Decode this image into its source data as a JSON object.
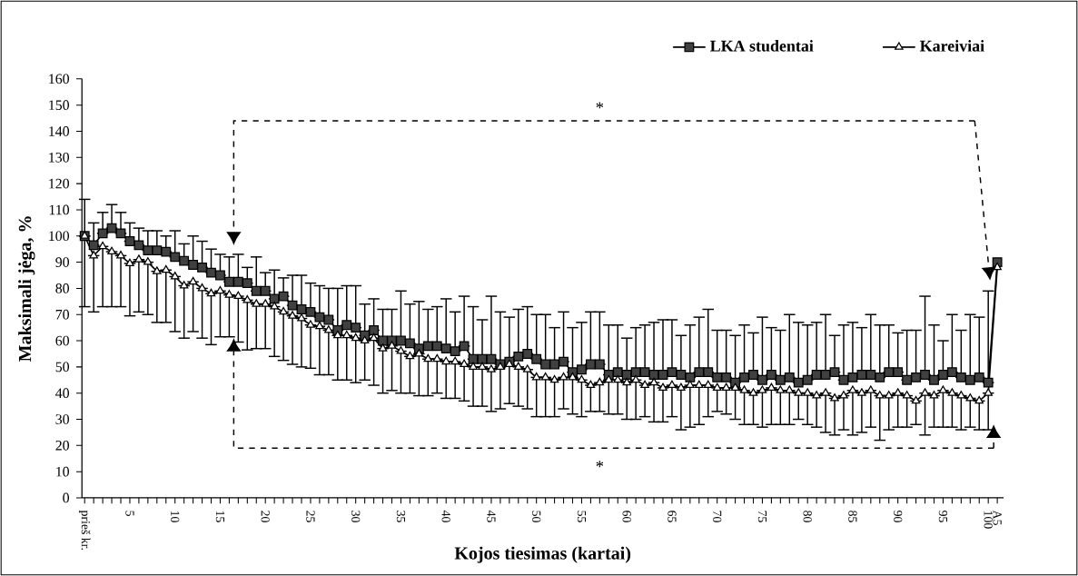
{
  "chart_data": {
    "type": "line",
    "xlabel": "Kojos tiesimas (kartai)",
    "ylabel": "Maksimali jėga, %",
    "categories": [
      "prieš kr.",
      null,
      null,
      null,
      null,
      "5",
      null,
      null,
      null,
      null,
      "10",
      null,
      null,
      null,
      null,
      "15",
      null,
      null,
      null,
      null,
      "20",
      null,
      null,
      null,
      null,
      "25",
      null,
      null,
      null,
      null,
      "30",
      null,
      null,
      null,
      null,
      "35",
      null,
      null,
      null,
      null,
      "40",
      null,
      null,
      null,
      null,
      "45",
      null,
      null,
      null,
      null,
      "50",
      null,
      null,
      null,
      null,
      "55",
      null,
      null,
      null,
      null,
      "60",
      null,
      null,
      null,
      null,
      "65",
      null,
      null,
      null,
      null,
      "70",
      null,
      null,
      null,
      null,
      "75",
      null,
      null,
      null,
      null,
      "80",
      null,
      null,
      null,
      null,
      "85",
      null,
      null,
      null,
      null,
      "90",
      null,
      null,
      null,
      null,
      "95",
      null,
      null,
      null,
      null,
      "100",
      "A5"
    ],
    "ylim": [
      0,
      160
    ],
    "yticks": [
      0,
      10,
      20,
      30,
      40,
      50,
      60,
      70,
      80,
      90,
      100,
      110,
      120,
      130,
      140,
      150,
      160
    ],
    "legend": "top right",
    "line_style": "solid",
    "annotations": [
      "*",
      "*"
    ],
    "series": [
      {
        "name": "LKA studentai",
        "color": "#404040",
        "marker": "square",
        "values": [
          100,
          96.5,
          101,
          103,
          101,
          98,
          96.5,
          94.5,
          94.5,
          94,
          92,
          90.5,
          89,
          88,
          86,
          85,
          82.5,
          82.5,
          82,
          79,
          79,
          76,
          77,
          73.5,
          72,
          71,
          69,
          68,
          64,
          66,
          65,
          62,
          64,
          60,
          60,
          60,
          59,
          57,
          58,
          58,
          57,
          56,
          58,
          53,
          53,
          53,
          51,
          52,
          54,
          55,
          53,
          51,
          51,
          52,
          48,
          49,
          51,
          51,
          47,
          48,
          47,
          48,
          48,
          47,
          47,
          48,
          47,
          46,
          48,
          48,
          46,
          46,
          44,
          46,
          47,
          45,
          47,
          45,
          46,
          44,
          45,
          47,
          47,
          48,
          45,
          46,
          47,
          47,
          46,
          48,
          48,
          45,
          46,
          47,
          45,
          47,
          48,
          46,
          45,
          46,
          44,
          90
        ],
        "errors": [
          [
            100,
            114
          ],
          [
            96.5,
            105
          ],
          [
            101,
            109
          ],
          [
            103,
            112
          ],
          [
            101,
            109
          ],
          [
            98,
            105
          ],
          [
            96.5,
            103
          ],
          [
            94.5,
            102
          ],
          [
            94.5,
            102
          ],
          [
            94,
            100
          ],
          [
            92,
            102
          ],
          [
            90.5,
            97
          ],
          [
            89,
            100
          ],
          [
            88,
            98
          ],
          [
            86,
            95
          ],
          [
            85,
            93
          ],
          [
            82.5,
            92
          ],
          [
            82.5,
            93
          ],
          [
            82,
            88
          ],
          [
            79,
            92
          ],
          [
            79,
            86
          ],
          [
            76,
            87
          ],
          [
            77,
            84
          ],
          [
            73.5,
            85
          ],
          [
            72,
            85
          ],
          [
            71,
            82
          ],
          [
            69,
            81
          ],
          [
            68,
            80
          ],
          [
            64,
            80
          ],
          [
            66,
            81
          ],
          [
            65,
            81
          ],
          [
            62,
            74
          ],
          [
            64,
            76
          ],
          [
            60,
            72
          ],
          [
            60,
            72
          ],
          [
            60,
            79
          ],
          [
            59,
            74
          ],
          [
            57,
            75
          ],
          [
            58,
            72
          ],
          [
            58,
            73
          ],
          [
            57,
            76
          ],
          [
            56,
            71
          ],
          [
            58,
            77
          ],
          [
            53,
            73
          ],
          [
            53,
            68
          ],
          [
            53,
            77
          ],
          [
            51,
            71
          ],
          [
            52,
            69
          ],
          [
            54,
            72
          ],
          [
            55,
            73
          ],
          [
            53,
            70
          ],
          [
            51,
            70
          ],
          [
            51,
            65
          ],
          [
            52,
            71
          ],
          [
            48,
            65
          ],
          [
            49,
            67
          ],
          [
            51,
            71
          ],
          [
            51,
            71
          ],
          [
            47,
            66
          ],
          [
            48,
            66
          ],
          [
            47,
            61
          ],
          [
            48,
            65
          ],
          [
            48,
            66
          ],
          [
            47,
            67
          ],
          [
            47,
            68
          ],
          [
            48,
            68
          ],
          [
            47,
            62
          ],
          [
            46,
            66
          ],
          [
            48,
            69
          ],
          [
            48,
            72
          ],
          [
            46,
            64
          ],
          [
            46,
            64
          ],
          [
            44,
            62
          ],
          [
            46,
            66
          ],
          [
            47,
            63
          ],
          [
            45,
            69
          ],
          [
            47,
            65
          ],
          [
            45,
            64
          ],
          [
            46,
            70
          ],
          [
            44,
            67
          ],
          [
            45,
            66
          ],
          [
            47,
            67
          ],
          [
            47,
            70
          ],
          [
            48,
            62
          ],
          [
            45,
            66
          ],
          [
            46,
            67
          ],
          [
            47,
            65
          ],
          [
            47,
            70
          ],
          [
            46,
            66
          ],
          [
            48,
            66
          ],
          [
            48,
            63
          ],
          [
            45,
            64
          ],
          [
            46,
            64
          ],
          [
            47,
            77
          ],
          [
            45,
            66
          ],
          [
            47,
            60
          ],
          [
            48,
            70
          ],
          [
            46,
            64
          ],
          [
            45,
            70
          ],
          [
            46,
            69
          ],
          [
            44,
            79
          ],
          null
        ]
      },
      {
        "name": "Kareiviai",
        "color": "#ffffff",
        "marker": "triangle",
        "values": [
          100,
          92.5,
          96,
          94,
          92.5,
          89.5,
          91,
          90,
          86.5,
          87,
          84.5,
          81,
          82.5,
          80,
          78,
          79,
          77.5,
          77,
          75.5,
          74,
          74,
          73,
          71,
          69.5,
          68.5,
          66,
          65.5,
          64,
          62,
          62,
          61,
          60,
          61,
          57,
          58,
          56,
          54,
          55,
          53,
          53,
          52,
          52,
          51,
          50,
          50,
          49,
          50,
          51,
          50,
          49,
          46,
          46,
          45,
          46,
          46,
          45,
          43,
          44,
          45,
          45,
          44,
          45,
          43,
          44,
          42,
          43,
          42,
          43,
          43,
          43,
          42,
          42,
          42,
          41,
          40,
          41,
          42,
          41,
          41,
          40,
          40,
          39,
          40,
          38,
          39,
          41,
          40,
          41,
          39,
          39,
          40,
          39,
          37,
          40,
          39,
          41,
          40,
          39,
          38,
          37,
          40,
          88
        ],
        "errors": [
          [
            73,
            100
          ],
          [
            71,
            92.5
          ],
          [
            73,
            96
          ],
          [
            73,
            94
          ],
          [
            73,
            92.5
          ],
          [
            69.5,
            89.5
          ],
          [
            71,
            91
          ],
          [
            70,
            90
          ],
          [
            67,
            86.5
          ],
          [
            67,
            87
          ],
          [
            63.5,
            84.5
          ],
          [
            61,
            81
          ],
          [
            63.5,
            82.5
          ],
          [
            61,
            80
          ],
          [
            58.5,
            78
          ],
          [
            61.5,
            79
          ],
          [
            61.5,
            77.5
          ],
          [
            59.5,
            77
          ],
          [
            56.5,
            75.5
          ],
          [
            57,
            74
          ],
          [
            57,
            74
          ],
          [
            54,
            73
          ],
          [
            52.5,
            71
          ],
          [
            51,
            69.5
          ],
          [
            50,
            68.5
          ],
          [
            49.5,
            66
          ],
          [
            47,
            65.5
          ],
          [
            47,
            64
          ],
          [
            45,
            62
          ],
          [
            45,
            62
          ],
          [
            44,
            61
          ],
          [
            45,
            60
          ],
          [
            43,
            61
          ],
          [
            40,
            57
          ],
          [
            41,
            58
          ],
          [
            40,
            56
          ],
          [
            40,
            54
          ],
          [
            39,
            55
          ],
          [
            39,
            53
          ],
          [
            40,
            53
          ],
          [
            38,
            52
          ],
          [
            38,
            52
          ],
          [
            37,
            51
          ],
          [
            35,
            50
          ],
          [
            35,
            50
          ],
          [
            33,
            49
          ],
          [
            34,
            50
          ],
          [
            36,
            51
          ],
          [
            35,
            50
          ],
          [
            34,
            49
          ],
          [
            31,
            46
          ],
          [
            31,
            46
          ],
          [
            31,
            45
          ],
          [
            34,
            46
          ],
          [
            32,
            46
          ],
          [
            31,
            45
          ],
          [
            33,
            43
          ],
          [
            33,
            44
          ],
          [
            32,
            45
          ],
          [
            32,
            45
          ],
          [
            30,
            44
          ],
          [
            30,
            45
          ],
          [
            31,
            43
          ],
          [
            29,
            44
          ],
          [
            29,
            42
          ],
          [
            31,
            43
          ],
          [
            26,
            42
          ],
          [
            27,
            43
          ],
          [
            28,
            43
          ],
          [
            31,
            43
          ],
          [
            33,
            42
          ],
          [
            32,
            42
          ],
          [
            30,
            42
          ],
          [
            28,
            41
          ],
          [
            28,
            40
          ],
          [
            27,
            41
          ],
          [
            28,
            42
          ],
          [
            28,
            41
          ],
          [
            28,
            41
          ],
          [
            30,
            40
          ],
          [
            28,
            40
          ],
          [
            27,
            39
          ],
          [
            25,
            40
          ],
          [
            24,
            38
          ],
          [
            26,
            39
          ],
          [
            24,
            41
          ],
          [
            25,
            40
          ],
          [
            27,
            41
          ],
          [
            22,
            39
          ],
          [
            26,
            39
          ],
          [
            27,
            40
          ],
          [
            27,
            39
          ],
          [
            28,
            37
          ],
          [
            24,
            40
          ],
          [
            27,
            39
          ],
          [
            27,
            41
          ],
          [
            27,
            40
          ],
          [
            26,
            39
          ],
          [
            27,
            38
          ],
          [
            26,
            37
          ],
          [
            26,
            40
          ],
          null
        ]
      }
    ]
  }
}
